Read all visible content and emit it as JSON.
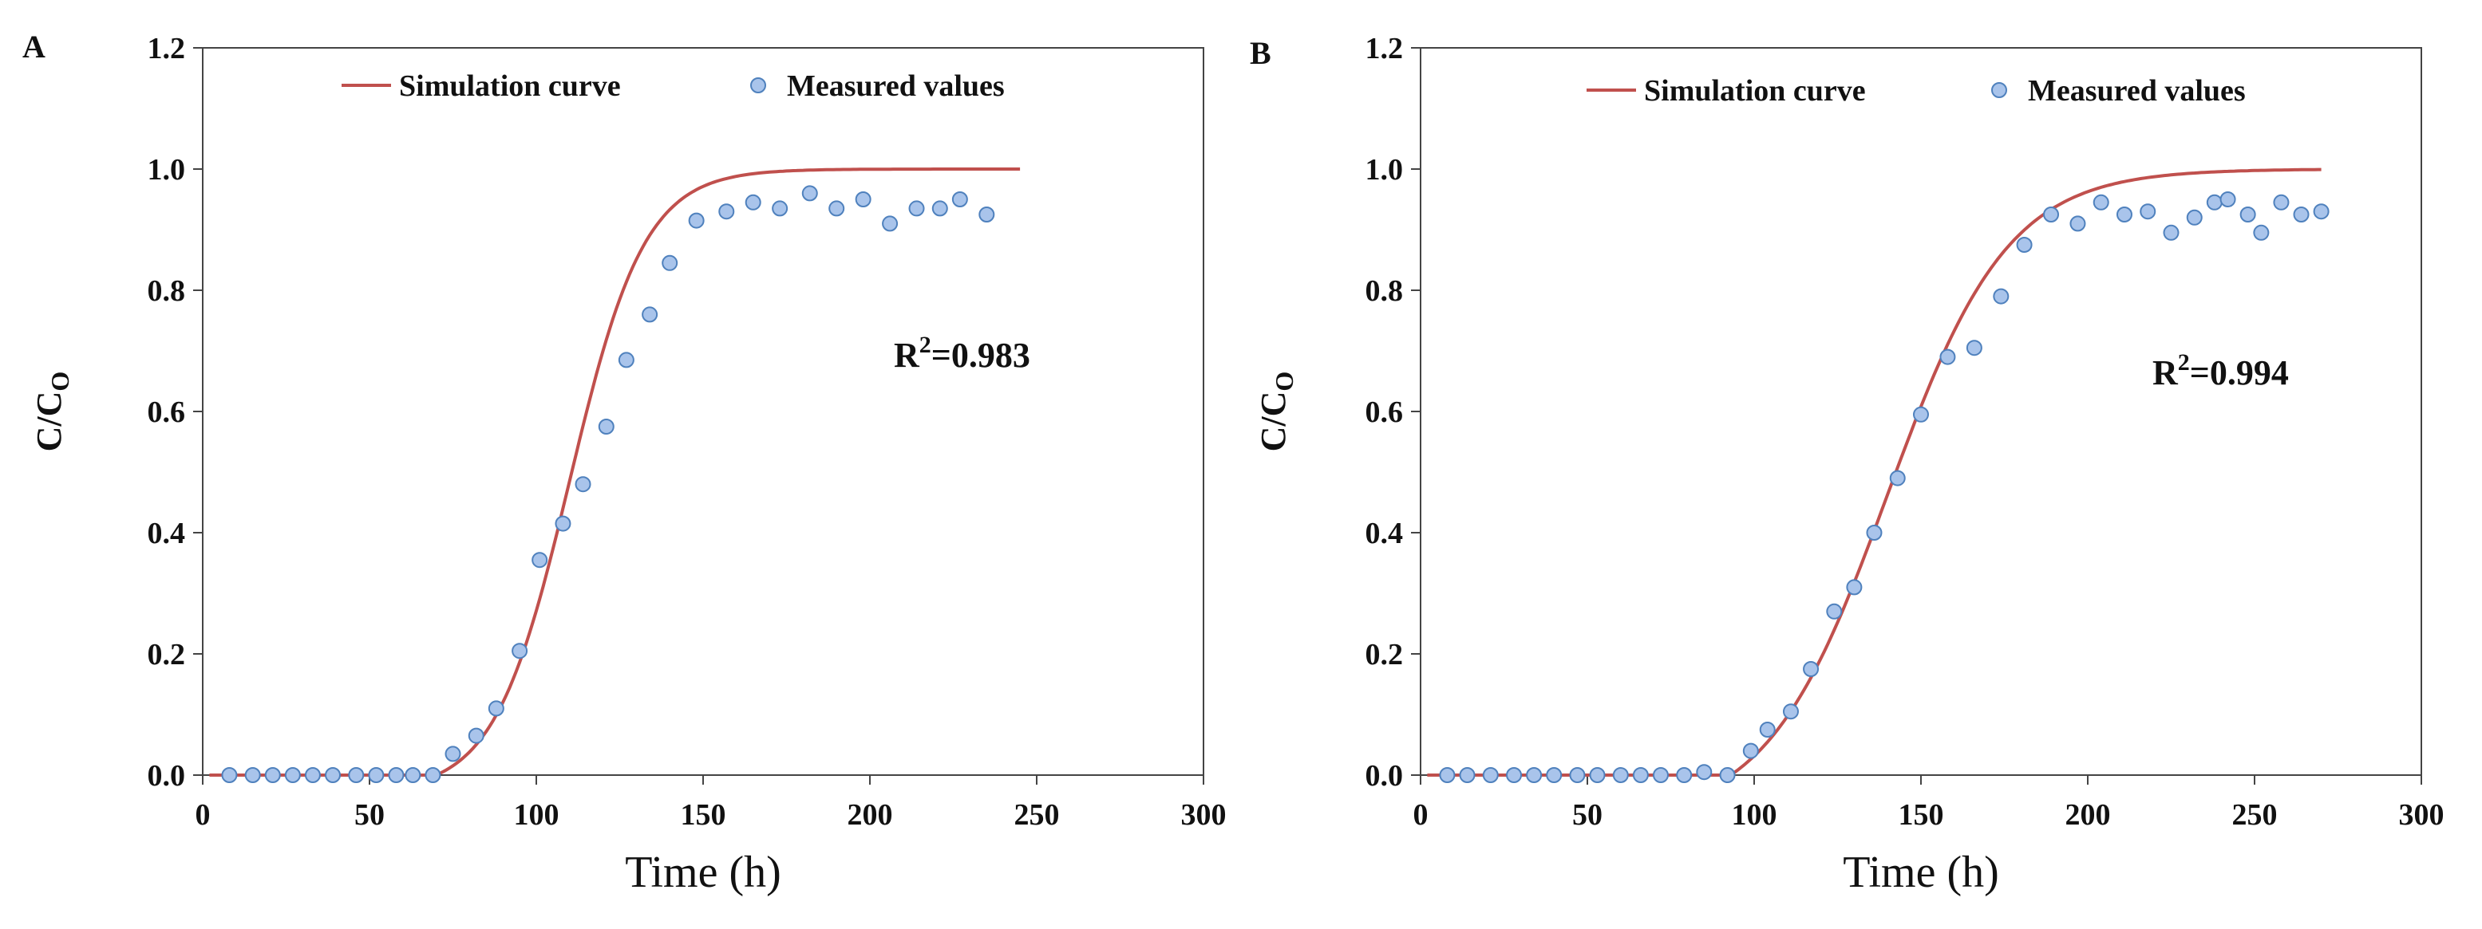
{
  "chart_data": [
    {
      "type": "scatter",
      "panel_label": "A",
      "xlabel": "Time (h)",
      "ylabel_main": "C/C",
      "ylabel_sub": "O",
      "xlim": [
        0,
        300
      ],
      "ylim": [
        0,
        1.2
      ],
      "xticks": [
        0,
        50,
        100,
        150,
        200,
        250,
        300
      ],
      "yticks": [
        0,
        0.2,
        0.4,
        0.6,
        0.8,
        1.0,
        1.2
      ],
      "xtick_labels": [
        "0",
        "50",
        "100",
        "150",
        "200",
        "250",
        "300"
      ],
      "ytick_labels": [
        "0.0",
        "0.2",
        "0.4",
        "0.6",
        "0.8",
        "1.0",
        "1.2"
      ],
      "legend": {
        "position": "top",
        "line_label": "Simulation curve",
        "marker_label": "Measured values"
      },
      "annotation": {
        "base": "R",
        "sup": "2",
        "value": "=0.983"
      },
      "simulation_curve": {
        "name": "Simulation curve",
        "t_start": 70,
        "t50": 110,
        "slope": 0.0888,
        "x_end": 245
      },
      "series": [
        {
          "name": "Measured values",
          "x": [
            8,
            15,
            21,
            27,
            33,
            39,
            46,
            52,
            58,
            63,
            69,
            75,
            82,
            88,
            95,
            101,
            108,
            114,
            121,
            127,
            134,
            140,
            148,
            157,
            165,
            173,
            182,
            190,
            198,
            206,
            214,
            221,
            227,
            235
          ],
          "y": [
            0,
            0,
            0,
            0,
            0,
            0,
            0,
            0,
            0,
            0,
            0,
            0.035,
            0.065,
            0.11,
            0.205,
            0.355,
            0.415,
            0.48,
            0.575,
            0.685,
            0.76,
            0.845,
            0.915,
            0.93,
            0.945,
            0.935,
            0.96,
            0.935,
            0.95,
            0.91,
            0.935,
            0.935,
            0.95,
            0.925
          ]
        }
      ]
    },
    {
      "type": "scatter",
      "panel_label": "B",
      "xlabel": "Time (h)",
      "ylabel_main": "C/C",
      "ylabel_sub": "O",
      "xlim": [
        0,
        300
      ],
      "ylim": [
        0,
        1.2
      ],
      "xticks": [
        0,
        50,
        100,
        150,
        200,
        250,
        300
      ],
      "yticks": [
        0,
        0.2,
        0.4,
        0.6,
        0.8,
        1.0,
        1.2
      ],
      "xtick_labels": [
        "0",
        "50",
        "100",
        "150",
        "200",
        "250",
        "300"
      ],
      "ytick_labels": [
        "0.0",
        "0.2",
        "0.4",
        "0.6",
        "0.8",
        "1.0",
        "1.2"
      ],
      "legend": {
        "position": "top",
        "line_label": "Simulation curve",
        "marker_label": "Measured values"
      },
      "annotation": {
        "base": "R",
        "sup": "2",
        "value": "=0.994"
      },
      "simulation_curve": {
        "name": "Simulation curve",
        "t_start": 93,
        "t50": 140,
        "slope": 0.0554,
        "x_end": 270
      },
      "series": [
        {
          "name": "Measured values",
          "x": [
            8,
            14,
            21,
            28,
            34,
            40,
            47,
            53,
            60,
            66,
            72,
            79,
            85,
            92,
            99,
            104,
            111,
            117,
            124,
            130,
            136,
            143,
            150,
            158,
            166,
            174,
            181,
            189,
            197,
            204,
            211,
            218,
            225,
            232,
            238,
            242,
            248,
            252,
            258,
            264,
            270
          ],
          "y": [
            0,
            0,
            0,
            0,
            0,
            0,
            0,
            0,
            0,
            0,
            0,
            0,
            0.005,
            0,
            0.04,
            0.075,
            0.105,
            0.175,
            0.27,
            0.31,
            0.4,
            0.49,
            0.595,
            0.69,
            0.705,
            0.79,
            0.875,
            0.925,
            0.91,
            0.945,
            0.925,
            0.93,
            0.895,
            0.92,
            0.945,
            0.95,
            0.925,
            0.895,
            0.945,
            0.925,
            0.93
          ]
        }
      ]
    }
  ],
  "colors": {
    "curve": "#c0504d",
    "marker_fill": "#a9c4eb",
    "marker_stroke": "#4f81bd",
    "axis": "#444444",
    "text": "#111111"
  }
}
